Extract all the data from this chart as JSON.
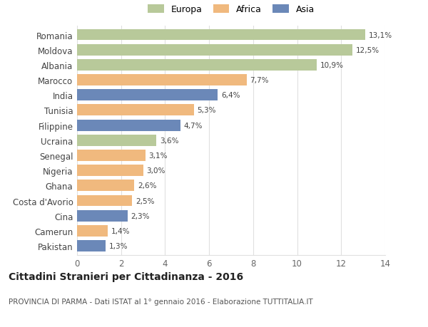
{
  "countries": [
    "Pakistan",
    "Camerun",
    "Cina",
    "Costa d'Avorio",
    "Ghana",
    "Nigeria",
    "Senegal",
    "Ucraina",
    "Filippine",
    "Tunisia",
    "India",
    "Marocco",
    "Albania",
    "Moldova",
    "Romania"
  ],
  "values": [
    1.3,
    1.4,
    2.3,
    2.5,
    2.6,
    3.0,
    3.1,
    3.6,
    4.7,
    5.3,
    6.4,
    7.7,
    10.9,
    12.5,
    13.1
  ],
  "labels": [
    "1,3%",
    "1,4%",
    "2,3%",
    "2,5%",
    "2,6%",
    "3,0%",
    "3,1%",
    "3,6%",
    "4,7%",
    "5,3%",
    "6,4%",
    "7,7%",
    "10,9%",
    "12,5%",
    "13,1%"
  ],
  "colors": [
    "#6b88b8",
    "#f0b97e",
    "#6b88b8",
    "#f0b97e",
    "#f0b97e",
    "#f0b97e",
    "#f0b97e",
    "#b8c99a",
    "#6b88b8",
    "#f0b97e",
    "#6b88b8",
    "#f0b97e",
    "#b8c99a",
    "#b8c99a",
    "#b8c99a"
  ],
  "legend_labels": [
    "Europa",
    "Africa",
    "Asia"
  ],
  "legend_colors": [
    "#b8c99a",
    "#f0b97e",
    "#6b88b8"
  ],
  "title": "Cittadini Stranieri per Cittadinanza - 2016",
  "subtitle": "PROVINCIA DI PARMA - Dati ISTAT al 1° gennaio 2016 - Elaborazione TUTTITALIA.IT",
  "xlim": [
    0,
    14
  ],
  "xticks": [
    0,
    2,
    4,
    6,
    8,
    10,
    12,
    14
  ],
  "background_color": "#ffffff",
  "bar_height": 0.75
}
